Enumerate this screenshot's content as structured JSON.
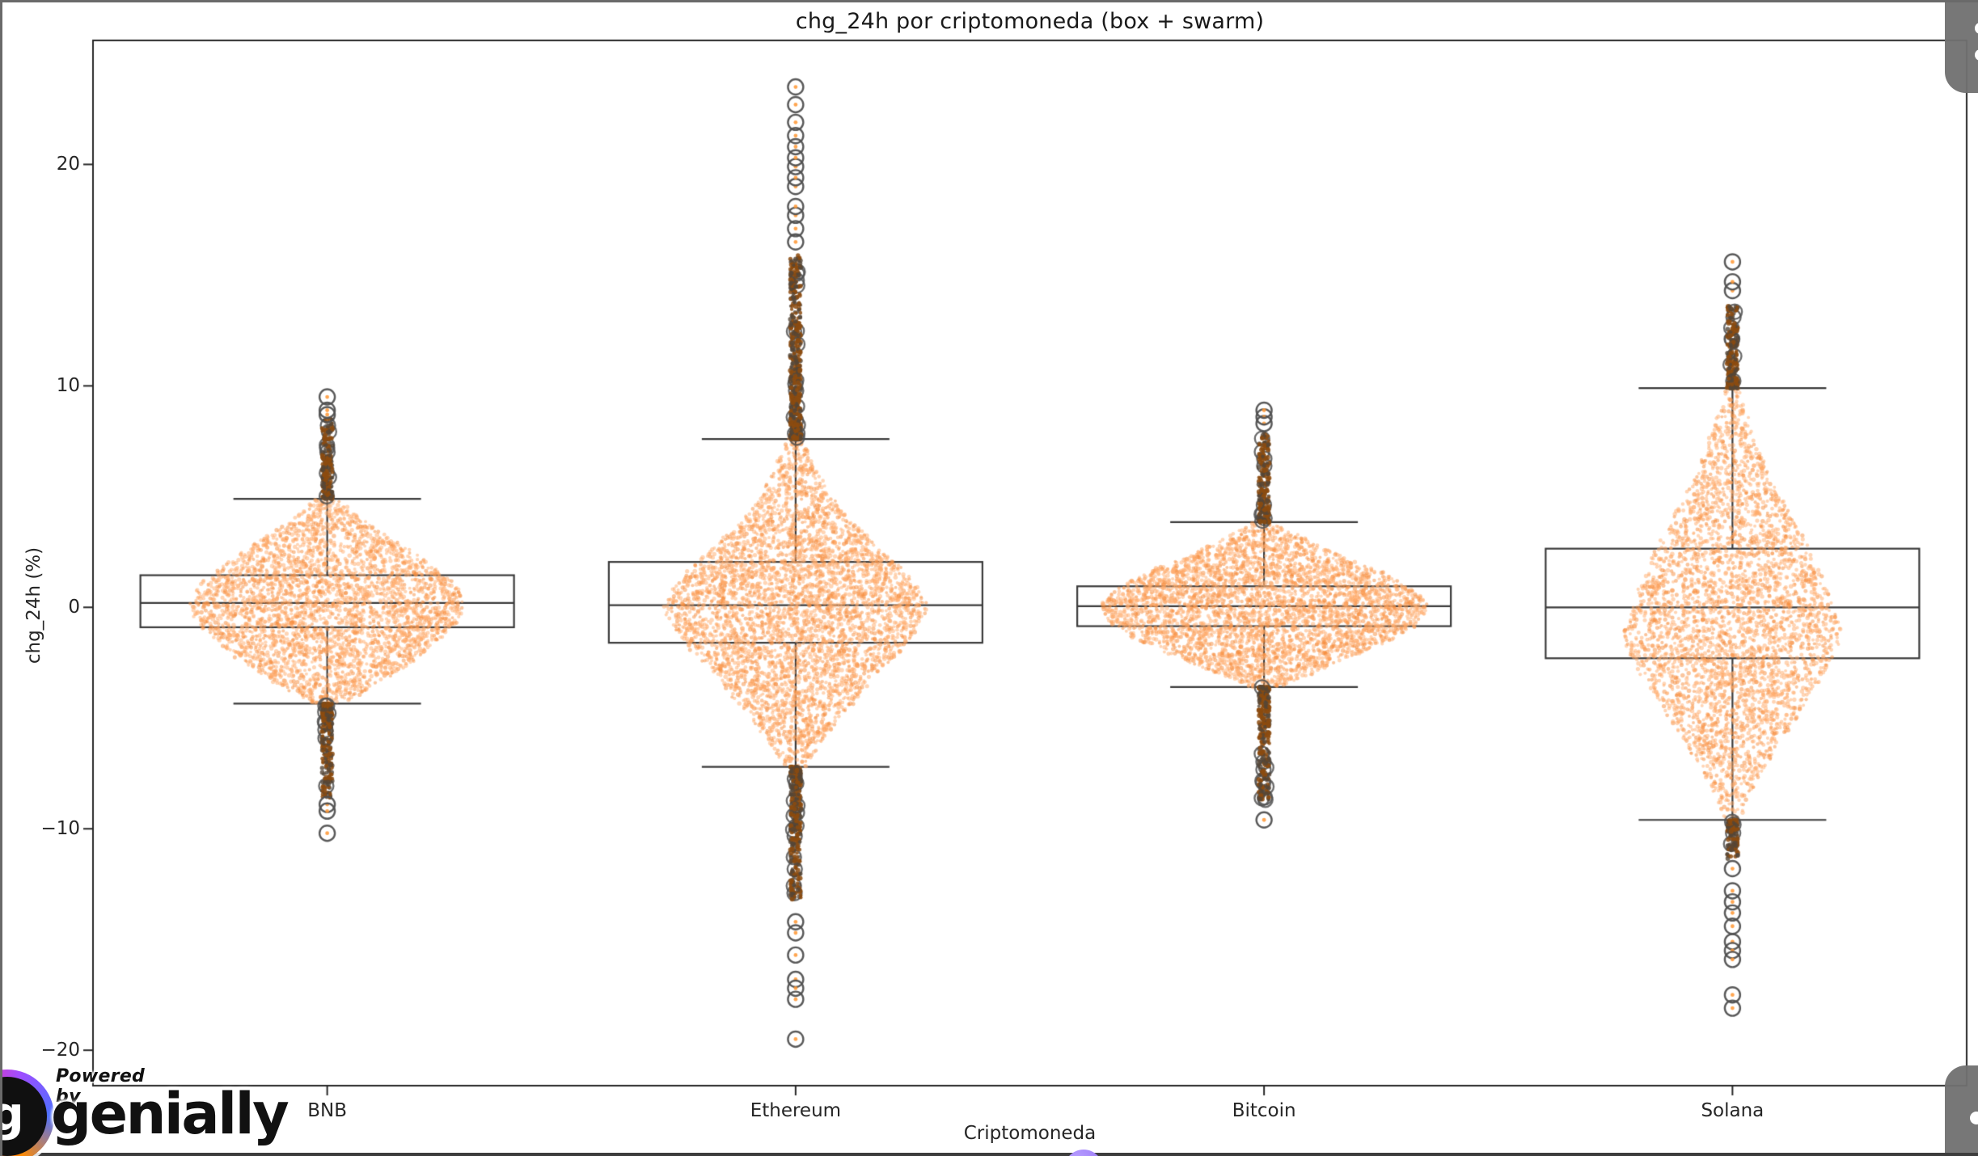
{
  "chart_data": {
    "type": "box+swarm",
    "title": "chg_24h por criptomoneda (box + swarm)",
    "xlabel": "Criptomoneda",
    "ylabel": "chg_24h (%)",
    "categories": [
      "BNB",
      "Ethereum",
      "Bitcoin",
      "Solana"
    ],
    "y_ticks": [
      {
        "v": 20,
        "label": "20"
      },
      {
        "v": 10,
        "label": "10"
      },
      {
        "v": 0,
        "label": "0"
      },
      {
        "v": -10,
        "label": "−10"
      },
      {
        "v": -20,
        "label": "−20"
      }
    ],
    "ylim": [
      -21.6,
      25.6
    ],
    "grid": false,
    "legend": "none",
    "series": [
      {
        "name": "BNB",
        "median": 0.2,
        "q1": -0.9,
        "q3": 1.45,
        "whisker_low": -4.35,
        "whisker_high": 4.9,
        "outlier_strip_top": [
          4.9,
          8.5
        ],
        "outlier_strip_bottom": [
          -4.35,
          -8.6
        ],
        "outlier_circles_top": [
          8.7,
          8.9,
          9.5
        ],
        "outlier_circles_bottom": [
          -8.9,
          -9.2,
          -10.2
        ],
        "swarm_profile": [
          [
            4.9,
            14
          ],
          [
            3.8,
            50
          ],
          [
            3,
            85
          ],
          [
            2,
            125
          ],
          [
            1,
            160
          ],
          [
            0.2,
            170
          ],
          [
            -0.5,
            165
          ],
          [
            -1.5,
            140
          ],
          [
            -2.5,
            105
          ],
          [
            -3.5,
            60
          ],
          [
            -4.35,
            20
          ]
        ],
        "n_points": 3300
      },
      {
        "name": "Ethereum",
        "median": 0.1,
        "q1": -1.6,
        "q3": 2.05,
        "whisker_low": -7.2,
        "whisker_high": 7.6,
        "outlier_strip_top": [
          7.6,
          15.9
        ],
        "outlier_strip_bottom": [
          -7.2,
          -13.2
        ],
        "outlier_circles_top": [
          16.5,
          17.1,
          17.7,
          18.1,
          19.0,
          19.4,
          19.9,
          20.3,
          20.8,
          21.3,
          21.9,
          22.7,
          23.5
        ],
        "outlier_circles_bottom": [
          -14.2,
          -14.7,
          -15.7,
          -16.8,
          -17.2,
          -17.7,
          -19.5
        ],
        "swarm_profile": [
          [
            7.6,
            10
          ],
          [
            6,
            30
          ],
          [
            5,
            45
          ],
          [
            4,
            65
          ],
          [
            3,
            95
          ],
          [
            2,
            125
          ],
          [
            1,
            150
          ],
          [
            0,
            165
          ],
          [
            -1,
            150
          ],
          [
            -2,
            130
          ],
          [
            -3,
            100
          ],
          [
            -4,
            80
          ],
          [
            -5,
            55
          ],
          [
            -6,
            35
          ],
          [
            -7.2,
            12
          ]
        ],
        "n_points": 4200
      },
      {
        "name": "Bitcoin",
        "median": 0.05,
        "q1": -0.85,
        "q3": 0.95,
        "whisker_low": -3.6,
        "whisker_high": 3.85,
        "outlier_strip_top": [
          3.85,
          7.9
        ],
        "outlier_strip_bottom": [
          -3.6,
          -8.7
        ],
        "outlier_circles_top": [
          8.3,
          8.6,
          8.9
        ],
        "outlier_circles_bottom": [
          -9.6
        ],
        "swarm_profile": [
          [
            3.85,
            12
          ],
          [
            3,
            55
          ],
          [
            2.2,
            100
          ],
          [
            1.5,
            150
          ],
          [
            0.8,
            185
          ],
          [
            0.05,
            205
          ],
          [
            -0.8,
            190
          ],
          [
            -1.5,
            155
          ],
          [
            -2.2,
            110
          ],
          [
            -3,
            60
          ],
          [
            -3.6,
            15
          ]
        ],
        "n_points": 3800
      },
      {
        "name": "Solana",
        "median": 0.0,
        "q1": -2.3,
        "q3": 2.65,
        "whisker_low": -9.6,
        "whisker_high": 9.9,
        "outlier_strip_top": [
          9.9,
          13.6
        ],
        "outlier_strip_bottom": [
          -9.6,
          -11.5
        ],
        "outlier_circles_top": [
          14.3,
          14.7,
          15.6
        ],
        "outlier_circles_bottom": [
          -11.8,
          -12.8,
          -13.3,
          -13.8,
          -14.4,
          -15.1,
          -15.5,
          -15.9,
          -17.5,
          -18.1
        ],
        "swarm_profile": [
          [
            9.9,
            8
          ],
          [
            8,
            25
          ],
          [
            7,
            35
          ],
          [
            6,
            45
          ],
          [
            5,
            60
          ],
          [
            4,
            75
          ],
          [
            3,
            90
          ],
          [
            2,
            105
          ],
          [
            1,
            115
          ],
          [
            0,
            125
          ],
          [
            -1,
            135
          ],
          [
            -2,
            130
          ],
          [
            -3,
            115
          ],
          [
            -4,
            95
          ],
          [
            -5,
            80
          ],
          [
            -6,
            60
          ],
          [
            -7,
            45
          ],
          [
            -8,
            28
          ],
          [
            -9.6,
            8
          ]
        ],
        "n_points": 3600
      }
    ],
    "style": {
      "swarm_color": "#ffac6b",
      "swarm_dense_color": "#f68c3c",
      "strip_dark_color": "#8c4b0f",
      "line_color": "#3a3a3a",
      "spine_color": "#262626",
      "outlier_ring_color": "#505050"
    }
  },
  "watermark": {
    "powered_by": "Powered by",
    "brand": "genially",
    "logo_glyph": "g"
  },
  "overlays": {
    "top_right_handle": "collapsed-panel-handle",
    "bottom_right_handle": "collapsed-panel-handle",
    "bottom_bar_color": "#3d3d3d",
    "notch_color": "#8f6bf5"
  }
}
